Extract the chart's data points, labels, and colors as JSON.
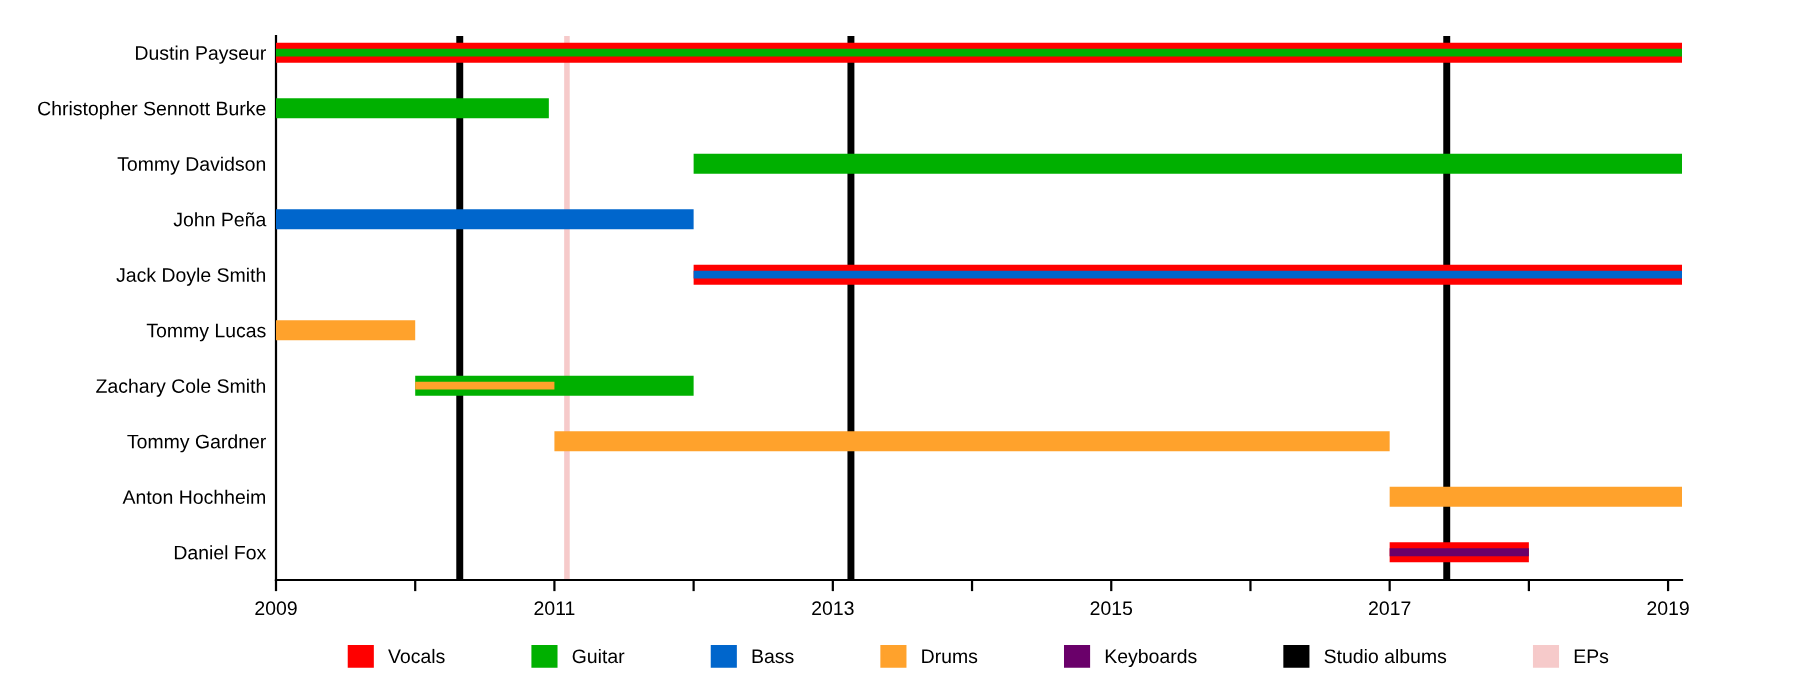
{
  "chart_data": {
    "type": "bar",
    "orientation": "horizontal",
    "categories": [
      "Dustin Payseur",
      "Christopher Sennott Burke",
      "Tommy Davidson",
      "John Peña",
      "Jack Doyle Smith",
      "Tommy Lucas",
      "Zachary Cole Smith",
      "Tommy Gardner",
      "Anton Hochheim",
      "Daniel Fox"
    ],
    "series": [
      {
        "name": "Vocals",
        "color": "#ff0000",
        "base": [
          2009,
          null,
          null,
          null,
          2012,
          null,
          null,
          null,
          null,
          2017
        ],
        "values": [
          10.1,
          null,
          null,
          null,
          7.1,
          null,
          null,
          null,
          null,
          1
        ]
      },
      {
        "name": "Guitar",
        "color": "#00b000",
        "base": [
          2009,
          2009,
          2012,
          null,
          null,
          null,
          2010,
          null,
          null,
          null
        ],
        "values": [
          10.1,
          1.96,
          7.1,
          null,
          null,
          null,
          2,
          null,
          null,
          null
        ]
      },
      {
        "name": "Bass",
        "color": "#0066cc",
        "base": [
          null,
          null,
          null,
          2009,
          2012,
          null,
          null,
          null,
          null,
          null
        ],
        "values": [
          null,
          null,
          null,
          3,
          7.1,
          null,
          null,
          null,
          null,
          null
        ]
      },
      {
        "name": "Drums",
        "color": "#ffa22c",
        "base": [
          null,
          null,
          null,
          null,
          null,
          2009,
          2010,
          2011,
          2017,
          null
        ],
        "values": [
          null,
          null,
          null,
          null,
          null,
          1,
          1,
          6,
          2.1,
          null
        ]
      },
      {
        "name": "Keyboards",
        "color": "#6a006a",
        "base": [
          null,
          null,
          null,
          null,
          null,
          null,
          null,
          null,
          null,
          2017
        ],
        "values": [
          null,
          null,
          null,
          null,
          null,
          null,
          null,
          null,
          null,
          1
        ]
      }
    ],
    "ref_lines": [
      {
        "axis": "x",
        "value": 2010.32,
        "label": "Studio albums",
        "color": "#000000"
      },
      {
        "axis": "x",
        "value": 2013.13,
        "color": "#000000"
      },
      {
        "axis": "x",
        "value": 2017.41,
        "color": "#000000"
      },
      {
        "axis": "x",
        "value": 2011.09,
        "label": "EPs",
        "color": "#f6caca"
      }
    ],
    "xlim": [
      2009,
      2019.1
    ],
    "xticks": [
      2009,
      {
        "value": 2010,
        "label": null
      },
      2011,
      {
        "value": 2012,
        "label": null
      },
      2013,
      {
        "value": 2014,
        "label": null
      },
      2015,
      {
        "value": 2016,
        "label": null
      },
      2017,
      {
        "value": 2018,
        "label": null
      },
      2019
    ],
    "legend": "bottom",
    "grid": false
  }
}
